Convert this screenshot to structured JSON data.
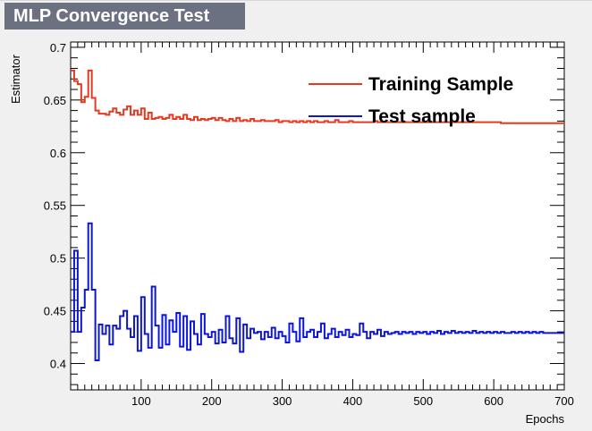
{
  "chart_data": {
    "type": "line",
    "title": "MLP Convergence Test",
    "xlabel": "Epochs",
    "ylabel": "Estimator",
    "xlim": [
      0,
      700
    ],
    "ylim": [
      0.375,
      0.705
    ],
    "x_ticks": [
      100,
      200,
      300,
      400,
      500,
      600,
      700
    ],
    "y_ticks": [
      0.4,
      0.45,
      0.5,
      0.55,
      0.6,
      0.65,
      0.7
    ],
    "x_tick_labels": [
      "100",
      "200",
      "300",
      "400",
      "500",
      "600",
      "700"
    ],
    "y_tick_labels": [
      "0.4",
      "0.45",
      "0.5",
      "0.55",
      "0.6",
      "0.65",
      "0.7"
    ],
    "grid": false,
    "legend_position": "top-right",
    "bin_width": 5,
    "series": [
      {
        "name": "Training Sample",
        "color": "#e8391f",
        "values": [
          0.678,
          0.668,
          0.665,
          0.648,
          0.653,
          0.678,
          0.652,
          0.64,
          0.637,
          0.637,
          0.636,
          0.639,
          0.642,
          0.638,
          0.636,
          0.641,
          0.644,
          0.636,
          0.64,
          0.636,
          0.642,
          0.632,
          0.638,
          0.632,
          0.633,
          0.634,
          0.632,
          0.633,
          0.636,
          0.632,
          0.634,
          0.632,
          0.636,
          0.632,
          0.631,
          0.634,
          0.631,
          0.632,
          0.631,
          0.632,
          0.633,
          0.631,
          0.633,
          0.631,
          0.63,
          0.632,
          0.63,
          0.633,
          0.63,
          0.631,
          0.63,
          0.632,
          0.63,
          0.63,
          0.631,
          0.63,
          0.63,
          0.63,
          0.631,
          0.629,
          0.63,
          0.63,
          0.629,
          0.63,
          0.629,
          0.63,
          0.629,
          0.63,
          0.629,
          0.63,
          0.629,
          0.629,
          0.63,
          0.629,
          0.629,
          0.631,
          0.629,
          0.629,
          0.629,
          0.63,
          0.629,
          0.629,
          0.629,
          0.629,
          0.629,
          0.629,
          0.63,
          0.629,
          0.629,
          0.629,
          0.629,
          0.629,
          0.629,
          0.629,
          0.629,
          0.629,
          0.629,
          0.629,
          0.629,
          0.629,
          0.629,
          0.629,
          0.629,
          0.629,
          0.629,
          0.629,
          0.629,
          0.629,
          0.629,
          0.629,
          0.629,
          0.629,
          0.629,
          0.629,
          0.629,
          0.629,
          0.629,
          0.629,
          0.629,
          0.629,
          0.629,
          0.629,
          0.628,
          0.628,
          0.628,
          0.628,
          0.628,
          0.628,
          0.628,
          0.628,
          0.628,
          0.628,
          0.628,
          0.628,
          0.628,
          0.628,
          0.628,
          0.628,
          0.628,
          0.628
        ]
      },
      {
        "name": "Test sample",
        "color": "#0b16d9",
        "values": [
          0.43,
          0.507,
          0.43,
          0.453,
          0.47,
          0.533,
          0.47,
          0.403,
          0.437,
          0.428,
          0.436,
          0.418,
          0.436,
          0.433,
          0.445,
          0.45,
          0.433,
          0.425,
          0.445,
          0.412,
          0.463,
          0.428,
          0.415,
          0.473,
          0.436,
          0.415,
          0.446,
          0.418,
          0.441,
          0.43,
          0.448,
          0.416,
          0.445,
          0.413,
          0.44,
          0.428,
          0.418,
          0.447,
          0.428,
          0.425,
          0.43,
          0.419,
          0.432,
          0.42,
          0.445,
          0.424,
          0.419,
          0.443,
          0.411,
          0.437,
          0.424,
          0.433,
          0.429,
          0.43,
          0.423,
          0.43,
          0.425,
          0.434,
          0.424,
          0.43,
          0.426,
          0.42,
          0.438,
          0.43,
          0.421,
          0.443,
          0.425,
          0.43,
          0.432,
          0.425,
          0.43,
          0.438,
          0.424,
          0.428,
          0.433,
          0.425,
          0.43,
          0.427,
          0.432,
          0.425,
          0.428,
          0.427,
          0.438,
          0.43,
          0.424,
          0.43,
          0.428,
          0.432,
          0.426,
          0.43,
          0.428,
          0.429,
          0.43,
          0.428,
          0.43,
          0.429,
          0.43,
          0.428,
          0.43,
          0.429,
          0.43,
          0.428,
          0.43,
          0.429,
          0.431,
          0.428,
          0.43,
          0.429,
          0.431,
          0.429,
          0.43,
          0.429,
          0.43,
          0.429,
          0.431,
          0.429,
          0.43,
          0.429,
          0.43,
          0.429,
          0.43,
          0.429,
          0.43,
          0.429,
          0.429,
          0.43,
          0.429,
          0.43,
          0.429,
          0.43,
          0.429,
          0.43,
          0.429,
          0.43,
          0.429,
          0.429,
          0.429,
          0.429,
          0.429,
          0.429
        ]
      }
    ]
  }
}
